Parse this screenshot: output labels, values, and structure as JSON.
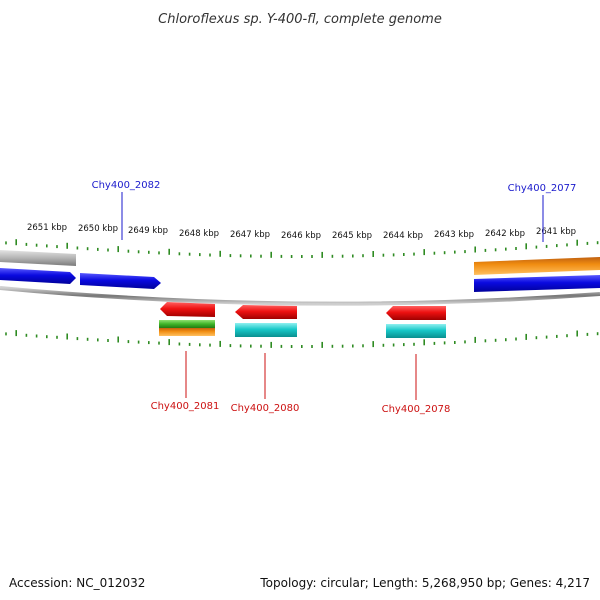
{
  "title": "Chloroflexus sp. Y-400-fl, complete genome",
  "footer": {
    "accession": "Accession: NC_012032",
    "summary": "Topology: circular; Length: 5,268,950 bp; Genes: 4,217"
  },
  "scale_labels": [
    "2651 kbp",
    "2650 kbp",
    "2649 kbp",
    "2648 kbp",
    "2647 kbp",
    "2646 kbp",
    "2645 kbp",
    "2644 kbp",
    "2643 kbp",
    "2642 kbp",
    "2641 kbp"
  ],
  "gene_labels": {
    "forward": [
      "Chy400_2082",
      "Chy400_2077"
    ],
    "reverse": [
      "Chy400_2081",
      "Chy400_2080",
      "Chy400_2078"
    ]
  },
  "colors": {
    "forward_label": "#1a1acc",
    "reverse_label": "#cc1111",
    "tick": "#2e8b22",
    "cds_blue": "#0a0ae0",
    "cds_red": "#ee1111",
    "cds_cyan": "#18c8c8",
    "cds_orange": "#f08c10",
    "cds_green": "#3fb42a",
    "cds_gray": "#b4b4b4",
    "backbone": "#888888"
  }
}
